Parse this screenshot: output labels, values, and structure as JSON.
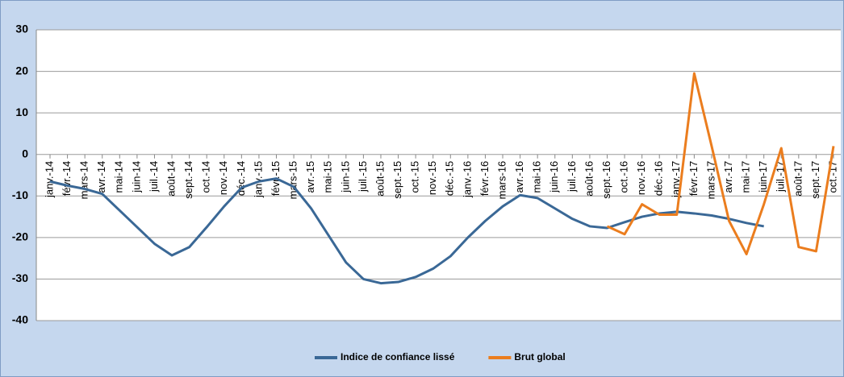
{
  "chart_data": {
    "type": "line",
    "categories": [
      "janv.-14",
      "févr.-14",
      "mars-14",
      "avr.-14",
      "mai-14",
      "juin-14",
      "juil.-14",
      "août-14",
      "sept.-14",
      "oct.-14",
      "nov.-14",
      "déc.-14",
      "janv.-15",
      "févr.-15",
      "mars-15",
      "avr.-15",
      "mai-15",
      "juin-15",
      "juil.-15",
      "août-15",
      "sept.-15",
      "oct.-15",
      "nov.-15",
      "déc.-15",
      "janv.-16",
      "févr.-16",
      "mars-16",
      "avr.-16",
      "mai-16",
      "juin-16",
      "juil.-16",
      "août-16",
      "sept.-16",
      "oct.-16",
      "nov.-16",
      "déc.-16",
      "janv.-17",
      "févr.-17",
      "mars-17",
      "avr.-17",
      "mai-17",
      "juin-17",
      "juil.-17",
      "août-17",
      "sept.-17",
      "oct.-17"
    ],
    "series": [
      {
        "name": "Indice de confiance lissé",
        "color": "#3a6896",
        "values": [
          -6.5,
          -7.5,
          -8.3,
          -9.5,
          -13.5,
          -17.5,
          -21.5,
          -24.3,
          -22.3,
          -17.5,
          -12.5,
          -8,
          -6.5,
          -5.8,
          -7.8,
          -13,
          -19.5,
          -26,
          -30,
          -31,
          -30.7,
          -29.5,
          -27.5,
          -24.5,
          -20,
          -16,
          -12.5,
          -9.8,
          -10.5,
          -13,
          -15.5,
          -17.3,
          -17.7,
          -16.3,
          -15,
          -14.2,
          -13.8,
          -14.2,
          -14.7,
          -15.5,
          -16.5,
          -17.3,
          null,
          null,
          null,
          null
        ]
      },
      {
        "name": "Brut global",
        "color": "#eb7d1e",
        "values": [
          null,
          null,
          null,
          null,
          null,
          null,
          null,
          null,
          null,
          null,
          null,
          null,
          null,
          null,
          null,
          null,
          null,
          null,
          null,
          null,
          null,
          null,
          null,
          null,
          null,
          null,
          null,
          null,
          null,
          null,
          null,
          null,
          -17.3,
          -19.2,
          -12,
          -14.5,
          -14.5,
          19.5,
          2,
          -16,
          -24,
          -12,
          1.5,
          -22.3,
          -23.3,
          2
        ]
      }
    ],
    "ylim": [
      -40,
      30
    ],
    "yticks": [
      -40,
      -30,
      -20,
      -10,
      0,
      10,
      20,
      30
    ],
    "grid": true
  }
}
